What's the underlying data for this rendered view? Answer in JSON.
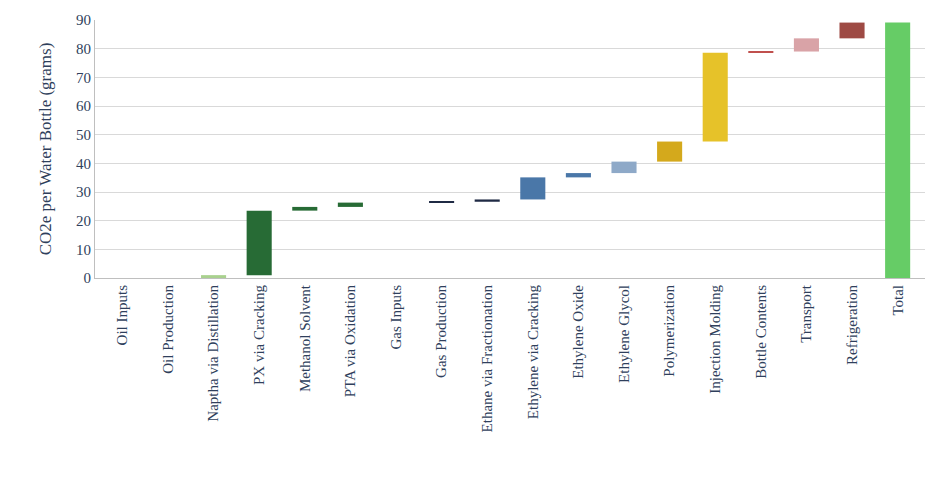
{
  "chart_data": {
    "type": "waterfall",
    "y_label": "CO2e per Water Bottle (grams)",
    "categories": [
      "Oil Inputs",
      "Oil Production",
      "Naptha via Distillation",
      "PX via Cracking",
      "Methanol Solvent",
      "PTA via Oxidation",
      "Gas Inputs",
      "Gas Production",
      "Ethane via Fractionation",
      "Ethylene via Cracking",
      "Ethylene Oxide",
      "Ethylene Glycol",
      "Polymerization",
      "Injection Molding",
      "Bottle Contents",
      "Transport",
      "Refrigeration",
      "Total"
    ],
    "values": [
      0,
      0,
      1,
      22.5,
      1.3,
      1.5,
      0,
      0.3,
      0.8,
      7.7,
      1.5,
      4,
      7,
      31,
      0.4,
      4.6,
      5.5,
      89.1
    ],
    "colors": [
      "#a9d18e",
      "#a9d18e",
      "#a9d18e",
      "#276b35",
      "#276b35",
      "#276b35",
      "#1f2a44",
      "#1f2a44",
      "#1f2a44",
      "#4a77a8",
      "#4a77a8",
      "#8ea9c8",
      "#d4a91c",
      "#e6c229",
      "#c0504d",
      "#d9a3a7",
      "#9e4a44",
      "#66cc66"
    ],
    "ylim": [
      0,
      90
    ],
    "yticks": [
      0,
      10,
      20,
      30,
      40,
      50,
      60,
      70,
      80,
      90
    ],
    "grid": true
  }
}
